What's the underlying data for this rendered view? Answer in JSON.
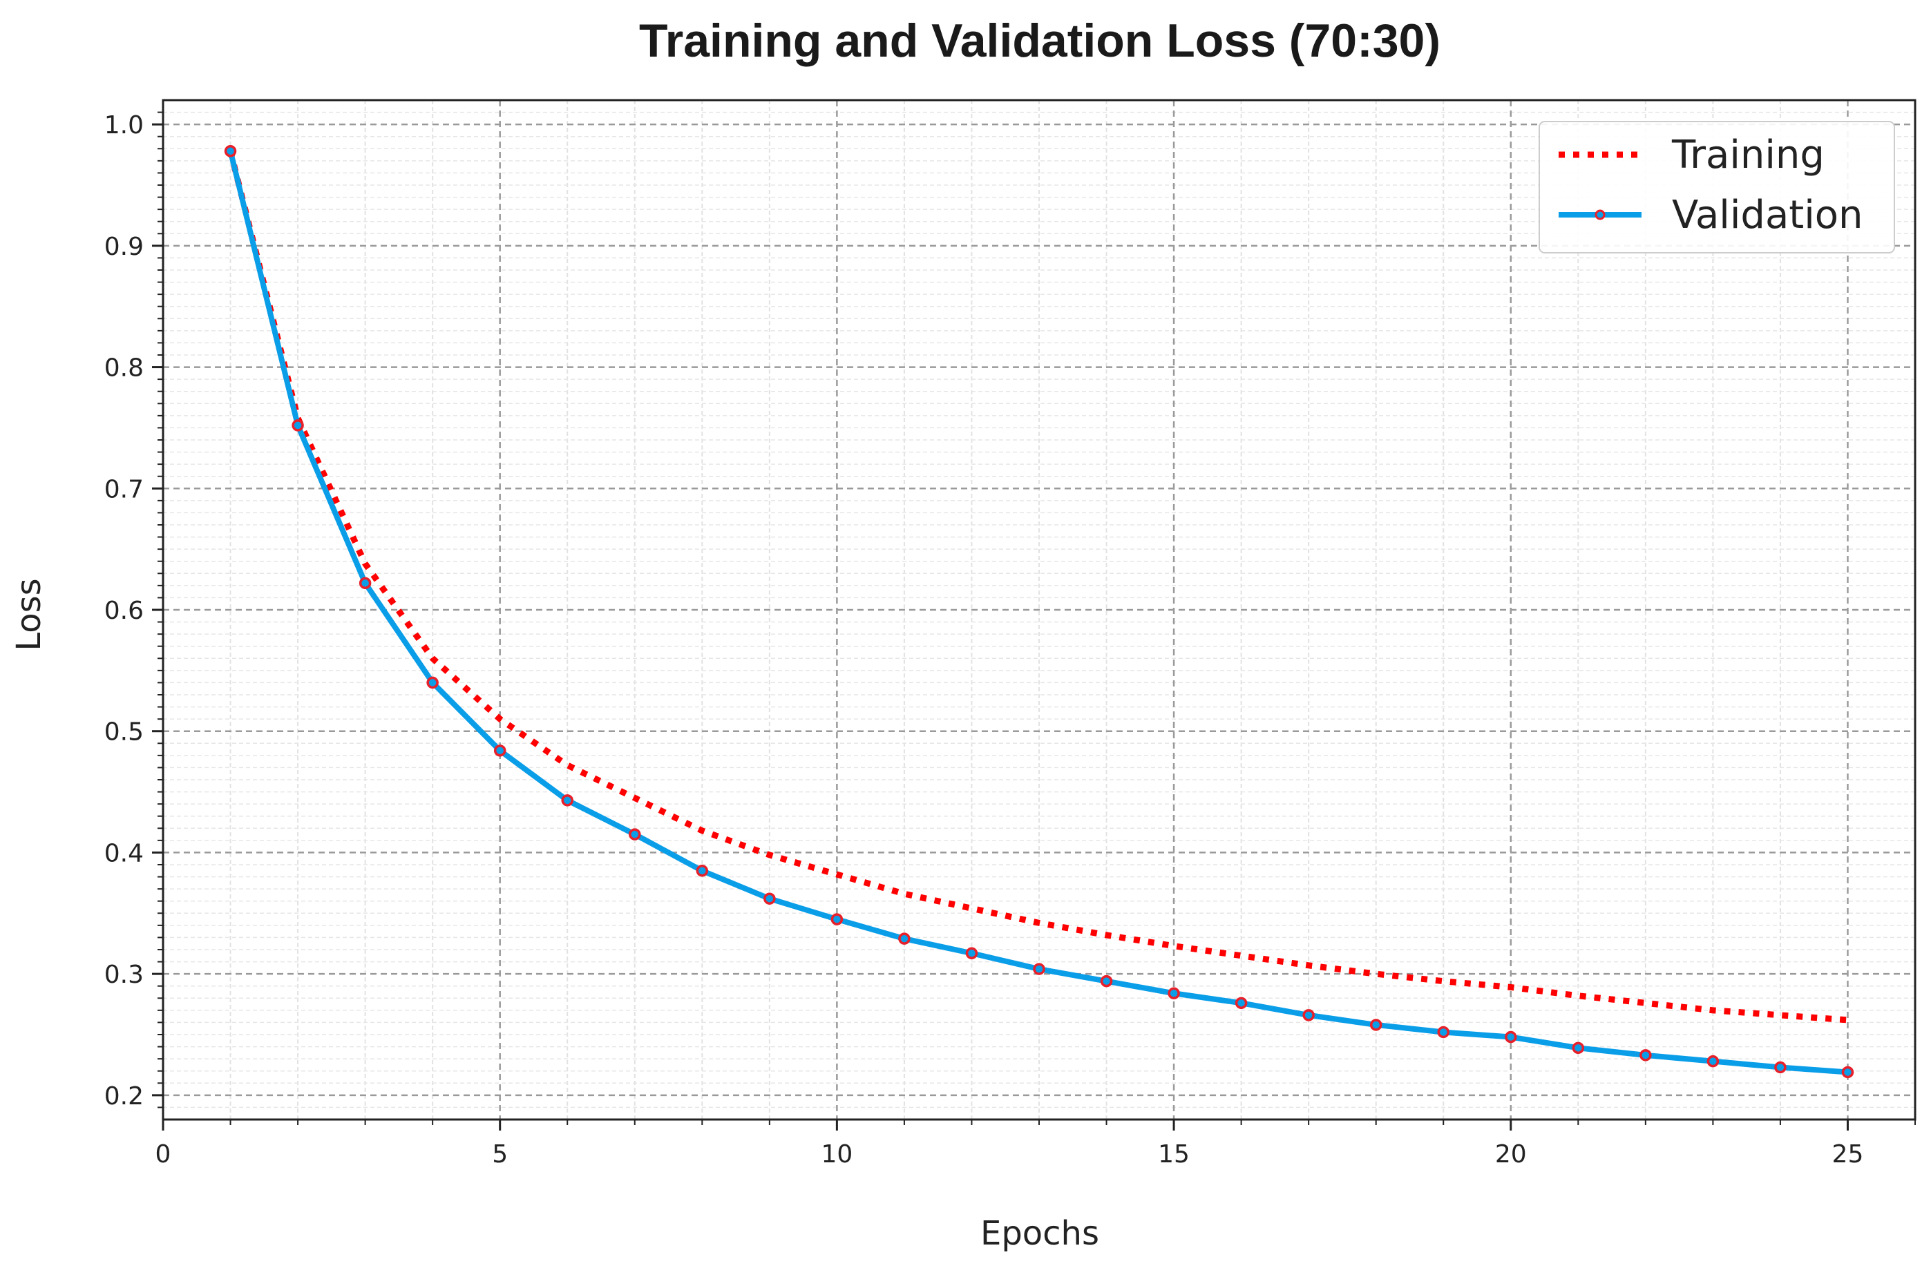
{
  "chart_data": {
    "type": "line",
    "title": "Training and Validation Loss (70:30)",
    "xlabel": "Epochs",
    "ylabel": "Loss",
    "xlim": [
      0,
      26
    ],
    "ylim": [
      0.18,
      1.02
    ],
    "xticks": [
      0,
      5,
      10,
      15,
      20,
      25
    ],
    "yticks": [
      0.2,
      0.3,
      0.4,
      0.5,
      0.6,
      0.7,
      0.8,
      0.9,
      1.0
    ],
    "ytick_labels": [
      "0.2",
      "0.3",
      "0.4",
      "0.5",
      "0.6",
      "0.7",
      "0.8",
      "0.9",
      "1.0"
    ],
    "grid": true,
    "legend_position": "top-right",
    "x": [
      1,
      2,
      3,
      4,
      5,
      6,
      7,
      8,
      9,
      10,
      11,
      12,
      13,
      14,
      15,
      16,
      17,
      18,
      19,
      20,
      21,
      22,
      23,
      24,
      25
    ],
    "series": [
      {
        "name": "Training",
        "color": "#ff0000",
        "style": "dotted",
        "values": [
          0.978,
          0.758,
          0.638,
          0.56,
          0.51,
          0.472,
          0.445,
          0.418,
          0.398,
          0.382,
          0.366,
          0.354,
          0.342,
          0.332,
          0.323,
          0.315,
          0.307,
          0.3,
          0.294,
          0.289,
          0.282,
          0.276,
          0.27,
          0.266,
          0.262
        ]
      },
      {
        "name": "Validation",
        "color": "#0a9ee8",
        "marker_color": "#e8202a",
        "style": "solid-with-markers",
        "values": [
          0.978,
          0.752,
          0.622,
          0.54,
          0.484,
          0.443,
          0.415,
          0.385,
          0.362,
          0.345,
          0.329,
          0.317,
          0.304,
          0.294,
          0.284,
          0.276,
          0.266,
          0.258,
          0.252,
          0.248,
          0.239,
          0.233,
          0.228,
          0.223,
          0.219
        ]
      }
    ]
  }
}
